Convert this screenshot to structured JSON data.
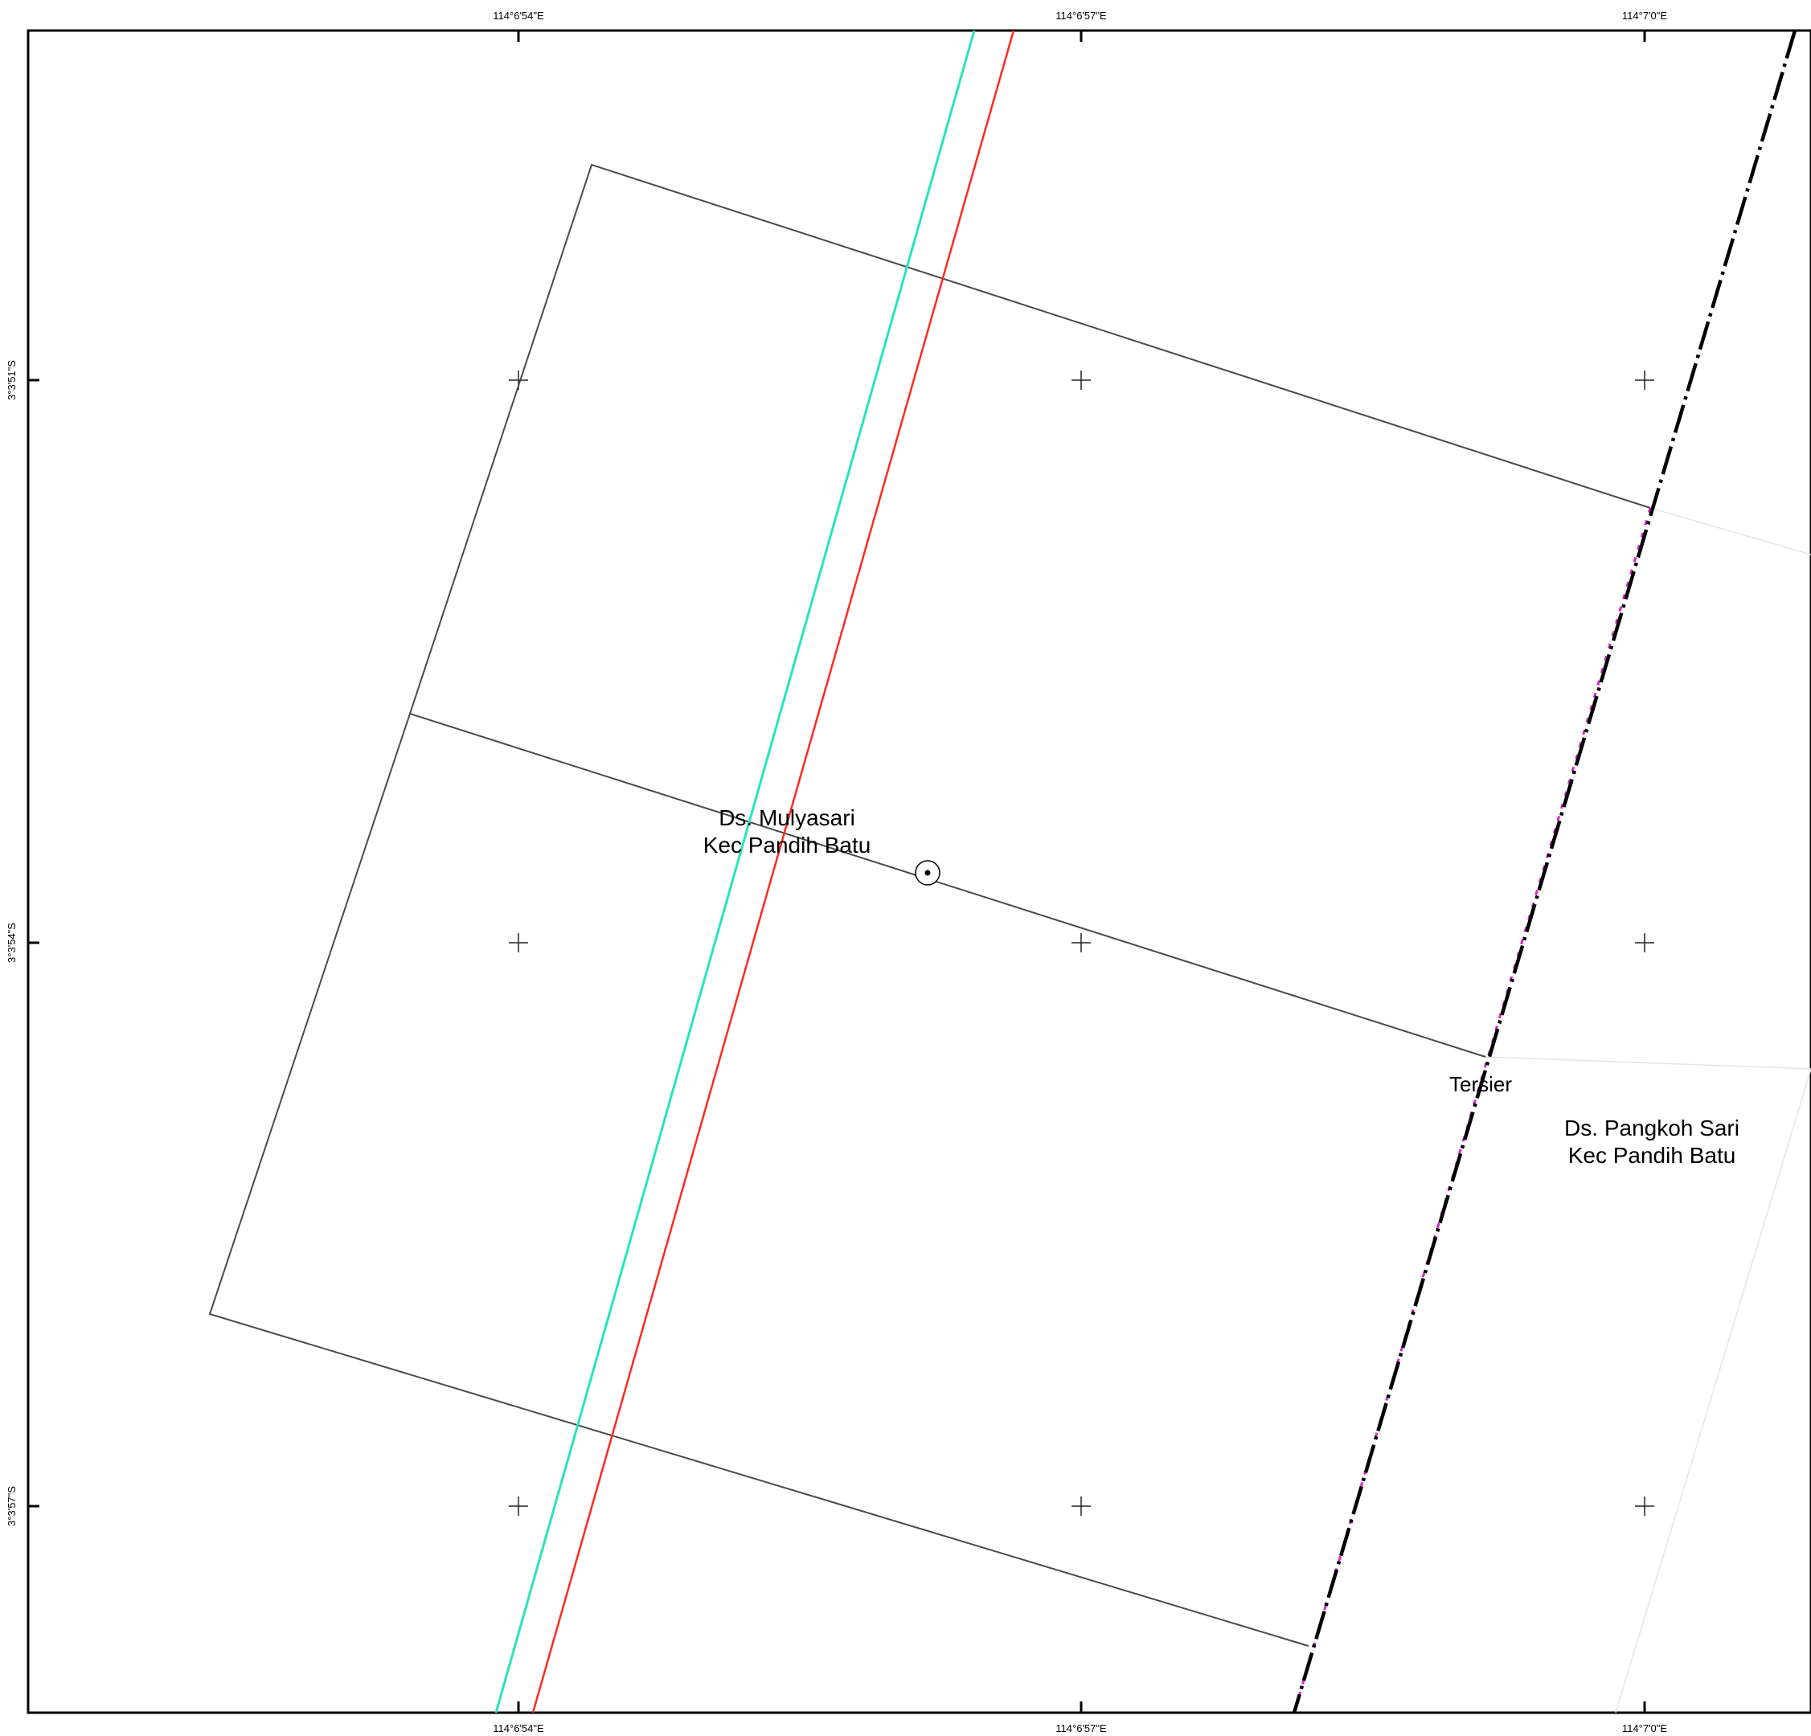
{
  "map": {
    "top_lon_labels": [
      "114°6'54\"E",
      "114°6'57\"E",
      "114°7'0\"E"
    ],
    "bottom_lon_labels": [
      "114°6'54\"E",
      "114°6'57\"E",
      "114°7'0\"E"
    ],
    "left_lat_labels": [
      "3°3'51\"S",
      "3°3'54\"S",
      "3°3'57\"S"
    ],
    "places": {
      "mulyasari": {
        "line1": "Ds. Mulyasari",
        "line2": "Kec Pandih Batu"
      },
      "pangkoh_sari": {
        "line1": "Ds. Pangkoh Sari",
        "line2": "Kec Pandih Batu"
      }
    },
    "canal_label": "Tersier"
  },
  "colors": {
    "frame": "#000000",
    "parcel_line": "#4a4a4a",
    "road_cyan": "#27e3c0",
    "road_red": "#ff2a1f",
    "boundary_dash": "#000000",
    "boundary_magenta": "#e020d0",
    "grid_cross": "#222222"
  },
  "icons": {
    "point_marker": "survey-point-icon"
  }
}
